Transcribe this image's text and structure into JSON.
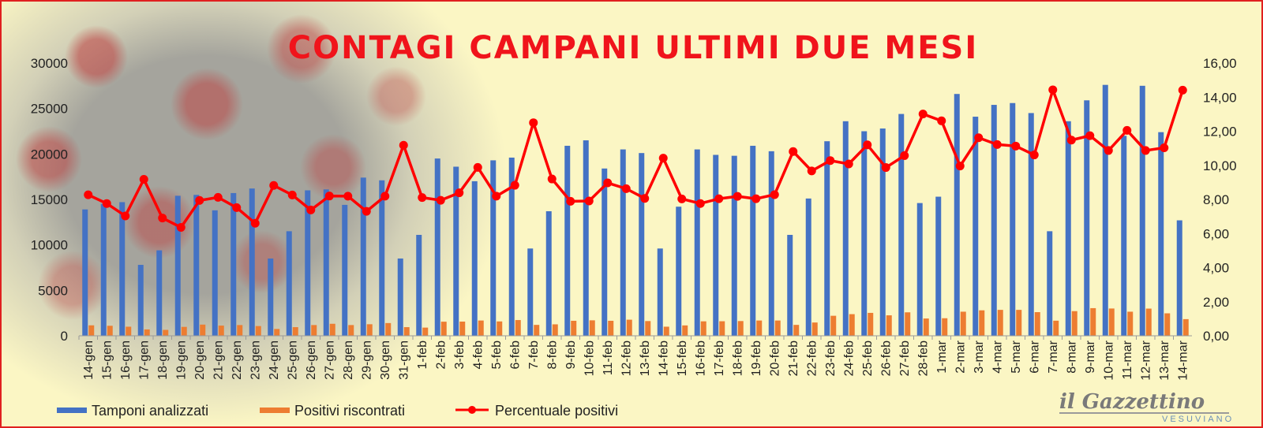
{
  "title": "CONTAGI CAMPANI ULTIMI DUE MESI",
  "logo": {
    "main": "il Gazzettino",
    "sub": "VESUVIANO"
  },
  "colors": {
    "tamponi": "#4472c4",
    "positivi": "#ed7d31",
    "percentuale": "#ff0000",
    "title": "#f0141b"
  },
  "chart_data": {
    "type": "bar",
    "title": "CONTAGI CAMPANI ULTIMI DUE MESI",
    "categories": [
      "14-gen",
      "15-gen",
      "16-gen",
      "17-gen",
      "18-gen",
      "19-gen",
      "20-gen",
      "21-gen",
      "22-gen",
      "23-gen",
      "24-gen",
      "25-gen",
      "26-gen",
      "27-gen",
      "28-gen",
      "29-gen",
      "30-gen",
      "31-gen",
      "1-feb",
      "2-feb",
      "3-feb",
      "4-feb",
      "5-feb",
      "6-feb",
      "7-feb",
      "8-feb",
      "9-feb",
      "10-feb",
      "11-feb",
      "12-feb",
      "13-feb",
      "14-feb",
      "15-feb",
      "16-feb",
      "17-feb",
      "18-feb",
      "19-feb",
      "20-feb",
      "21-feb",
      "22-feb",
      "23-feb",
      "24-feb",
      "25-feb",
      "26-feb",
      "27-feb",
      "28-feb",
      "1-mar",
      "2-mar",
      "3-mar",
      "4-mar",
      "5-mar",
      "6-mar",
      "7-mar",
      "8-mar",
      "9-mar",
      "10-mar",
      "11-mar",
      "12-mar",
      "13-mar",
      "14-mar"
    ],
    "series": [
      {
        "name": "Tamponi analizzati",
        "type": "bar",
        "axis": "left",
        "values": [
          13900,
          14500,
          14700,
          7800,
          9400,
          15400,
          15500,
          13800,
          15700,
          16200,
          8500,
          11500,
          16000,
          16100,
          14400,
          17400,
          17100,
          8500,
          11100,
          19500,
          18600,
          17000,
          19300,
          19600,
          9600,
          13700,
          20900,
          21500,
          18400,
          20500,
          20100,
          9600,
          14200,
          20500,
          19900,
          19800,
          20900,
          20300,
          11100,
          15100,
          21400,
          23600,
          22500,
          22800,
          24400,
          14600,
          15300,
          26600,
          24100,
          25400,
          25600,
          24500,
          11500,
          23600,
          25900,
          27600,
          22000,
          27500,
          22400,
          12700
        ]
      },
      {
        "name": "Positivi riscontrati",
        "type": "bar",
        "axis": "left",
        "values": [
          1150,
          1100,
          1000,
          700,
          650,
          980,
          1230,
          1120,
          1180,
          1070,
          750,
          950,
          1180,
          1320,
          1180,
          1270,
          1400,
          950,
          900,
          1550,
          1560,
          1680,
          1580,
          1730,
          1200,
          1260,
          1650,
          1700,
          1650,
          1770,
          1620,
          1000,
          1140,
          1590,
          1600,
          1620,
          1680,
          1680,
          1200,
          1460,
          2200,
          2380,
          2520,
          2250,
          2580,
          1900,
          1930,
          2650,
          2800,
          2850,
          2850,
          2600,
          1660,
          2710,
          3040,
          3000,
          2650,
          2990,
          2470,
          1830
        ]
      },
      {
        "name": "Percentuale positivi",
        "type": "line",
        "axis": "right",
        "values": [
          8.27,
          7.76,
          7.03,
          9.18,
          6.91,
          6.36,
          7.94,
          8.12,
          7.52,
          6.6,
          8.82,
          8.26,
          7.38,
          8.2,
          8.19,
          7.3,
          8.19,
          11.18,
          8.11,
          7.95,
          8.39,
          9.88,
          8.19,
          8.83,
          12.5,
          9.2,
          7.89,
          7.91,
          8.97,
          8.63,
          8.06,
          10.42,
          8.03,
          7.76,
          8.04,
          8.18,
          8.04,
          8.28,
          10.81,
          9.67,
          10.28,
          10.08,
          11.2,
          9.87,
          10.57,
          13.01,
          12.61,
          9.96,
          11.62,
          11.22,
          11.13,
          10.61,
          14.43,
          11.48,
          11.74,
          10.87,
          12.05,
          10.87,
          11.03,
          14.41
        ]
      }
    ],
    "y_left": {
      "ylim": [
        0,
        30000
      ],
      "ticks": [
        "0",
        "5000",
        "10000",
        "15000",
        "20000",
        "25000",
        "30000"
      ]
    },
    "y_right": {
      "ylim": [
        0,
        16
      ],
      "ticks": [
        "0,00",
        "2,00",
        "4,00",
        "6,00",
        "8,00",
        "10,00",
        "12,00",
        "14,00",
        "16,00"
      ]
    },
    "grid": false,
    "legend_position": "bottom-left"
  }
}
